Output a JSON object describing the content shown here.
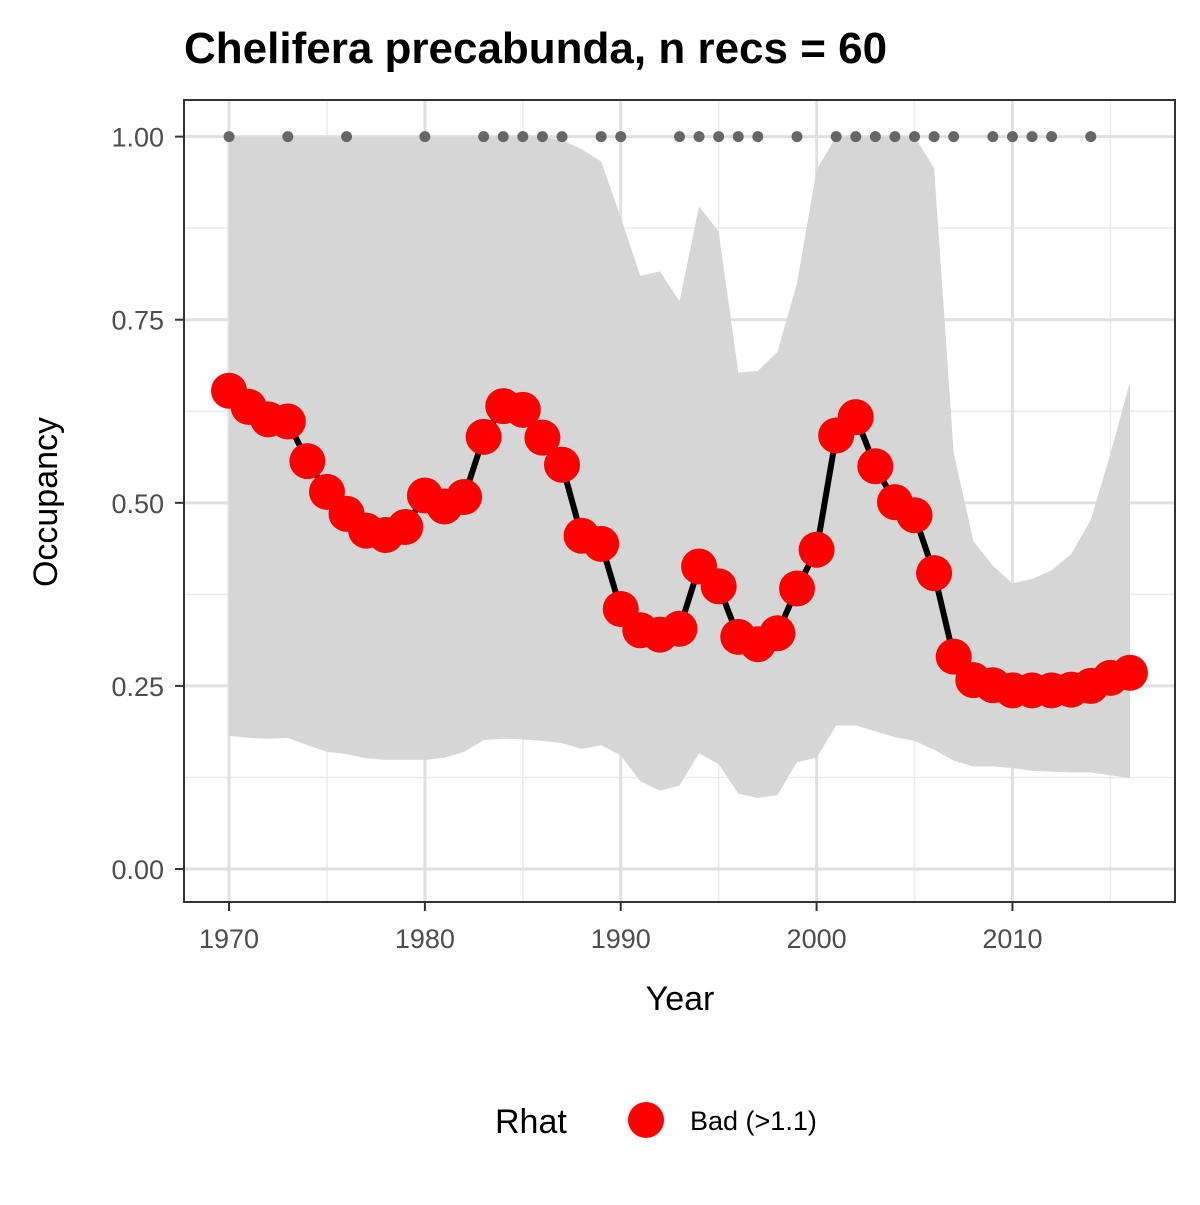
{
  "chart_data": {
    "type": "line",
    "title": "Chelifera precabunda, n recs = 60",
    "xlabel": "Year",
    "ylabel": "Occupancy",
    "xlim": [
      1967.7,
      2018.3
    ],
    "ylim": [
      -0.045,
      1.05
    ],
    "x_ticks": [
      1970,
      1980,
      1990,
      2000,
      2010
    ],
    "x_tick_labels": [
      "1970",
      "1980",
      "1990",
      "2000",
      "2010"
    ],
    "y_ticks": [
      0,
      0.25,
      0.5,
      0.75,
      1.0
    ],
    "y_tick_labels": [
      "0.00",
      "0.25",
      "0.50",
      "0.75",
      "1.00"
    ],
    "grid": true,
    "legend": {
      "placement": "bottom",
      "title": "Rhat",
      "entries": [
        {
          "label": "Bad (>1.1)",
          "color": "#ff0000"
        }
      ]
    },
    "colors": {
      "points": "#ff0000",
      "line": "#000000",
      "ribbon": "#d6d6d6",
      "records": "#666666"
    },
    "series": [
      {
        "x": [
          1970,
          1971,
          1972,
          1973,
          1974,
          1975,
          1976,
          1977,
          1978,
          1979,
          1980,
          1981,
          1982,
          1983,
          1984,
          1985,
          1986,
          1987,
          1988,
          1989,
          1990,
          1991,
          1992,
          1993,
          1994,
          1995,
          1996,
          1997,
          1998,
          1999,
          2000,
          2001,
          2002,
          2003,
          2004,
          2005,
          2006,
          2007,
          2008,
          2009,
          2010,
          2011,
          2012,
          2013,
          2014,
          2015,
          2016
        ],
        "values": [
          0.653,
          0.631,
          0.614,
          0.611,
          0.557,
          0.515,
          0.485,
          0.462,
          0.456,
          0.467,
          0.51,
          0.495,
          0.508,
          0.59,
          0.632,
          0.627,
          0.589,
          0.552,
          0.455,
          0.444,
          0.355,
          0.326,
          0.32,
          0.328,
          0.413,
          0.386,
          0.317,
          0.307,
          0.322,
          0.383,
          0.436,
          0.592,
          0.617,
          0.55,
          0.501,
          0.483,
          0.404,
          0.29,
          0.258,
          0.251,
          0.244,
          0.244,
          0.244,
          0.245,
          0.25,
          0.261,
          0.268
        ],
        "lower": [
          0.182,
          0.179,
          0.178,
          0.179,
          0.169,
          0.16,
          0.157,
          0.151,
          0.149,
          0.149,
          0.149,
          0.152,
          0.16,
          0.176,
          0.178,
          0.177,
          0.175,
          0.172,
          0.164,
          0.169,
          0.155,
          0.12,
          0.107,
          0.114,
          0.158,
          0.143,
          0.103,
          0.097,
          0.101,
          0.146,
          0.152,
          0.196,
          0.196,
          0.188,
          0.18,
          0.175,
          0.163,
          0.148,
          0.14,
          0.14,
          0.138,
          0.134,
          0.133,
          0.132,
          0.132,
          0.128,
          0.124
        ],
        "upper": [
          1.0,
          1.0,
          1.0,
          1.0,
          1.0,
          1.0,
          1.0,
          1.0,
          1.0,
          1.0,
          1.0,
          1.0,
          1.0,
          1.0,
          1.0,
          1.0,
          1.0,
          0.995,
          0.983,
          0.966,
          0.89,
          0.81,
          0.816,
          0.775,
          0.905,
          0.87,
          0.678,
          0.68,
          0.706,
          0.8,
          0.955,
          1.0,
          1.0,
          1.0,
          1.0,
          1.0,
          0.957,
          0.568,
          0.448,
          0.414,
          0.39,
          0.396,
          0.408,
          0.43,
          0.477,
          0.567,
          0.665
        ]
      }
    ],
    "records": {
      "y": 1.0,
      "years": [
        1970,
        1973,
        1976,
        1980,
        1983,
        1984,
        1985,
        1986,
        1987,
        1989,
        1990,
        1993,
        1994,
        1995,
        1996,
        1997,
        1999,
        2001,
        2002,
        2003,
        2004,
        2005,
        2006,
        2007,
        2009,
        2010,
        2011,
        2012,
        2014
      ]
    }
  }
}
